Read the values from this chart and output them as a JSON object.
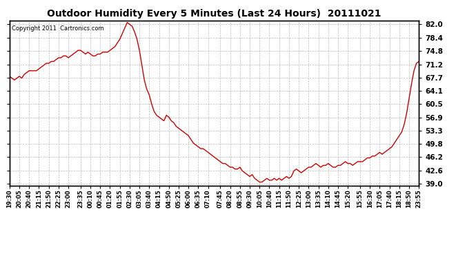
{
  "title": "Outdoor Humidity Every 5 Minutes (Last 24 Hours)  20111021",
  "copyright": "Copyright 2011  Cartronics.com",
  "line_color": "#cc0000",
  "bg_color": "#ffffff",
  "plot_bg_color": "#ffffff",
  "grid_color": "#aaaaaa",
  "yticks": [
    39.0,
    42.6,
    46.2,
    49.8,
    53.3,
    56.9,
    60.5,
    64.1,
    67.7,
    71.2,
    74.8,
    78.4,
    82.0
  ],
  "ylim": [
    38.5,
    83.0
  ],
  "xtick_labels": [
    "19:30",
    "20:05",
    "20:40",
    "21:15",
    "21:50",
    "22:25",
    "23:00",
    "23:35",
    "00:10",
    "00:45",
    "01:20",
    "01:55",
    "02:30",
    "03:05",
    "03:40",
    "04:15",
    "04:50",
    "05:25",
    "06:00",
    "06:35",
    "07:10",
    "07:45",
    "08:20",
    "08:55",
    "09:30",
    "10:05",
    "10:40",
    "11:15",
    "11:50",
    "12:25",
    "13:00",
    "13:35",
    "14:10",
    "14:45",
    "15:20",
    "15:55",
    "16:30",
    "17:05",
    "17:40",
    "18:15",
    "18:50",
    "23:55"
  ],
  "humidity_values": [
    68.0,
    67.5,
    67.0,
    67.5,
    68.0,
    67.5,
    68.5,
    69.0,
    69.5,
    69.5,
    69.5,
    69.5,
    70.0,
    70.5,
    71.0,
    71.5,
    71.5,
    72.0,
    72.0,
    72.5,
    73.0,
    73.0,
    73.5,
    73.5,
    73.0,
    73.5,
    74.0,
    74.5,
    75.0,
    75.0,
    74.5,
    74.0,
    74.5,
    74.0,
    73.5,
    73.5,
    74.0,
    74.0,
    74.5,
    74.5,
    74.5,
    75.0,
    75.5,
    76.0,
    77.0,
    78.0,
    79.5,
    81.0,
    82.5,
    82.0,
    81.5,
    80.0,
    78.0,
    75.0,
    71.0,
    67.0,
    64.5,
    63.0,
    60.5,
    58.5,
    57.5,
    57.0,
    56.5,
    56.0,
    57.5,
    57.0,
    56.0,
    55.5,
    54.5,
    54.0,
    53.5,
    53.0,
    52.5,
    52.0,
    51.0,
    50.0,
    49.5,
    49.0,
    48.5,
    48.5,
    48.0,
    47.5,
    47.0,
    46.5,
    46.0,
    45.5,
    45.0,
    44.5,
    44.5,
    44.0,
    43.5,
    43.5,
    43.0,
    43.0,
    43.5,
    42.5,
    42.0,
    41.5,
    41.0,
    41.5,
    40.5,
    40.0,
    39.5,
    39.5,
    40.0,
    40.5,
    40.0,
    40.0,
    40.5,
    40.0,
    40.5,
    40.0,
    40.5,
    41.0,
    40.5,
    41.0,
    42.5,
    43.0,
    42.5,
    42.0,
    42.5,
    43.0,
    43.5,
    43.5,
    44.0,
    44.5,
    44.0,
    43.5,
    44.0,
    44.0,
    44.5,
    44.0,
    43.5,
    43.5,
    44.0,
    44.0,
    44.5,
    45.0,
    44.5,
    44.5,
    44.0,
    44.5,
    45.0,
    45.0,
    45.0,
    45.5,
    46.0,
    46.0,
    46.5,
    46.5,
    47.0,
    47.5,
    47.0,
    47.5,
    48.0,
    48.5,
    49.0,
    50.0,
    51.0,
    52.0,
    53.0,
    55.0,
    58.0,
    62.0,
    66.0,
    69.5,
    71.5,
    72.0
  ]
}
